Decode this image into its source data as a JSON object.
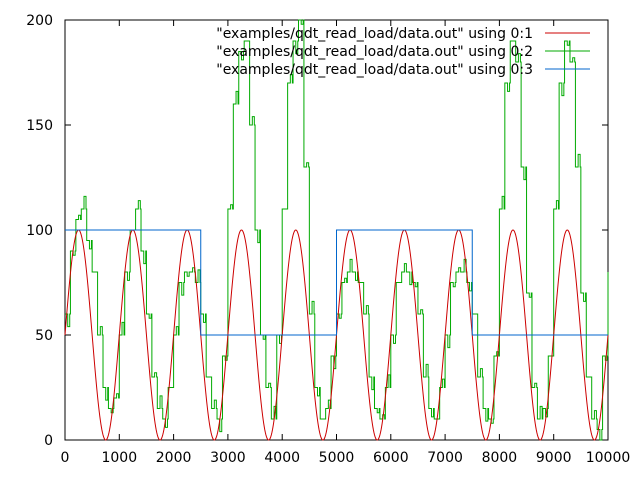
{
  "chart_data": {
    "type": "line",
    "title": "",
    "xlabel": "",
    "ylabel": "",
    "xlim": [
      0,
      10000
    ],
    "ylim": [
      0,
      200
    ],
    "grid": false,
    "legend_placement": "top-right",
    "x_ticks": [
      "0",
      "1000",
      "2000",
      "3000",
      "4000",
      "5000",
      "6000",
      "7000",
      "8000",
      "9000",
      "10000"
    ],
    "y_ticks": [
      "0",
      "50",
      "100",
      "150",
      "200"
    ],
    "series": [
      {
        "name": "\"examples/qdt_read_load/data.out\" using 0:1",
        "color": "#cc0000",
        "kind": "sine",
        "x": [
          0,
          125,
          250,
          375,
          500,
          625,
          750,
          875,
          1000,
          1125,
          1250,
          1375,
          1500,
          1625,
          1750,
          1875,
          2000,
          2125,
          2250,
          2375,
          2500,
          2625,
          2750,
          2875,
          3000,
          3125,
          3250,
          3375,
          3500,
          3625,
          3750,
          3875,
          4000,
          4125,
          4250,
          4375,
          4500,
          4625,
          4750,
          4875,
          5000,
          5125,
          5250,
          5375,
          5500,
          5625,
          5750,
          5875,
          6000,
          6125,
          6250,
          6375,
          6500,
          6625,
          6750,
          6875,
          7000,
          7125,
          7250,
          7375,
          7500,
          7625,
          7750,
          7875,
          8000,
          8125,
          8250,
          8375,
          8500,
          8625,
          8750,
          8875,
          9000,
          9125,
          9250,
          9375,
          9500,
          9625,
          9750,
          9875,
          10000
        ],
        "y": [
          50,
          85,
          100,
          85,
          50,
          15,
          0,
          15,
          50,
          85,
          100,
          85,
          50,
          15,
          0,
          15,
          50,
          85,
          100,
          85,
          50,
          15,
          0,
          15,
          50,
          85,
          100,
          85,
          50,
          15,
          0,
          15,
          50,
          85,
          100,
          85,
          50,
          15,
          0,
          15,
          50,
          85,
          100,
          85,
          50,
          15,
          0,
          15,
          50,
          85,
          100,
          85,
          50,
          15,
          0,
          15,
          50,
          85,
          100,
          85,
          50,
          15,
          0,
          15,
          50,
          85,
          100,
          85,
          50,
          15,
          0,
          15,
          50,
          85,
          100,
          85,
          50,
          15,
          0,
          15,
          50
        ]
      },
      {
        "name": "\"examples/qdt_read_load/data.out\" using 0:2",
        "color": "#00aa00",
        "kind": "noisy",
        "x": [
          0,
          100,
          200,
          300,
          400,
          500,
          600,
          700,
          800,
          900,
          1000,
          1100,
          1200,
          1300,
          1400,
          1500,
          1600,
          1700,
          1800,
          1900,
          2000,
          2100,
          2200,
          2300,
          2400,
          2500,
          2600,
          2700,
          2800,
          2900,
          3000,
          3100,
          3200,
          3300,
          3400,
          3500,
          3600,
          3700,
          3800,
          3900,
          4000,
          4100,
          4200,
          4300,
          4400,
          4500,
          4600,
          4700,
          4800,
          4900,
          5000,
          5100,
          5200,
          5300,
          5400,
          5500,
          5600,
          5700,
          5800,
          5900,
          6000,
          6100,
          6200,
          6300,
          6400,
          6500,
          6600,
          6700,
          6800,
          6900,
          7000,
          7100,
          7200,
          7300,
          7400,
          7500,
          7600,
          7700,
          7800,
          7900,
          8000,
          8100,
          8200,
          8300,
          8400,
          8500,
          8600,
          8700,
          8800,
          8900,
          9000,
          9100,
          9200,
          9300,
          9400,
          9500,
          9600,
          9700,
          9800,
          9900,
          10000
        ],
        "y": [
          60,
          90,
          105,
          110,
          95,
          80,
          50,
          25,
          15,
          20,
          50,
          80,
          100,
          110,
          90,
          60,
          30,
          15,
          10,
          25,
          50,
          75,
          80,
          80,
          75,
          60,
          30,
          15,
          10,
          40,
          110,
          160,
          185,
          190,
          150,
          100,
          50,
          25,
          10,
          50,
          110,
          170,
          190,
          200,
          130,
          60,
          25,
          10,
          15,
          40,
          60,
          75,
          80,
          80,
          75,
          60,
          30,
          15,
          10,
          25,
          50,
          75,
          80,
          80,
          75,
          60,
          30,
          15,
          10,
          25,
          50,
          75,
          80,
          80,
          75,
          60,
          30,
          15,
          10,
          40,
          110,
          170,
          190,
          180,
          130,
          70,
          25,
          10,
          15,
          40,
          110,
          170,
          190,
          180,
          130,
          70,
          30,
          10,
          5,
          40,
          80
        ]
      },
      {
        "name": "\"examples/qdt_read_load/data.out\" using 0:3",
        "color": "#0066cc",
        "kind": "step",
        "x": [
          0,
          2500,
          2500,
          5000,
          5000,
          7500,
          7500,
          10000
        ],
        "y": [
          100,
          100,
          50,
          50,
          100,
          100,
          50,
          50
        ]
      }
    ]
  }
}
